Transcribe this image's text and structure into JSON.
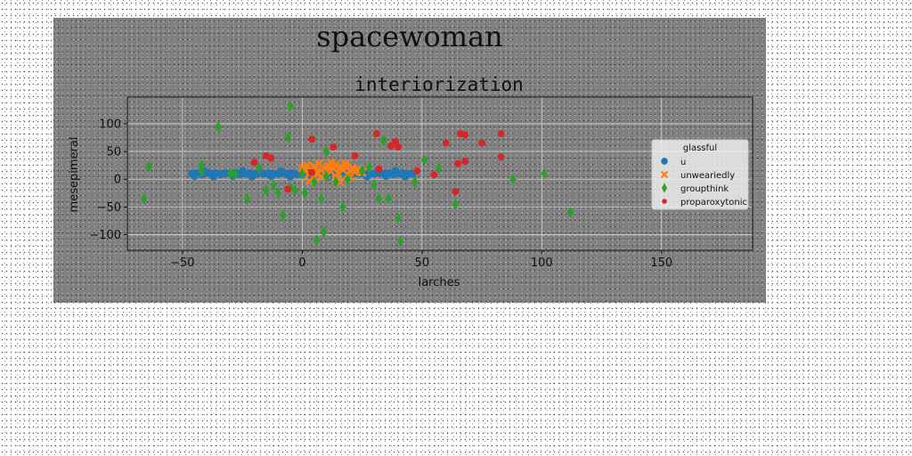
{
  "figure": {
    "suptitle": "spacewoman"
  },
  "chart_data": {
    "type": "scatter",
    "title": "interiorization",
    "xlabel": "larches",
    "ylabel": "mesepimeral",
    "xlim": [
      -73,
      188
    ],
    "ylim": [
      -128,
      148
    ],
    "xticks": [
      -50,
      0,
      50,
      100,
      150
    ],
    "yticks": [
      -100,
      -50,
      0,
      50,
      100
    ],
    "xtick_labels": [
      "−50",
      "0",
      "50",
      "100",
      "150"
    ],
    "ytick_labels": [
      "−100",
      "−50",
      "0",
      "50",
      "100"
    ],
    "grid": true,
    "legend": {
      "title": "glassful",
      "placement": "right"
    },
    "series": [
      {
        "name": "u",
        "marker": "circle",
        "color": "#1f77b4",
        "points": [
          [
            -46,
            10
          ],
          [
            -44,
            11
          ],
          [
            -42,
            9
          ],
          [
            -40,
            12
          ],
          [
            -38,
            10
          ],
          [
            -36,
            11
          ],
          [
            -34,
            9
          ],
          [
            -32,
            11
          ],
          [
            -30,
            10
          ],
          [
            -28,
            12
          ],
          [
            -26,
            9
          ],
          [
            -24,
            10
          ],
          [
            -22,
            11
          ],
          [
            -20,
            9
          ],
          [
            -18,
            12
          ],
          [
            -16,
            10
          ],
          [
            -14,
            11
          ],
          [
            -12,
            9
          ],
          [
            -10,
            10
          ],
          [
            -8,
            12
          ],
          [
            -6,
            10
          ],
          [
            -4,
            11
          ],
          [
            -2,
            9
          ],
          [
            0,
            10
          ],
          [
            2,
            12
          ],
          [
            4,
            10
          ],
          [
            6,
            11
          ],
          [
            8,
            9
          ],
          [
            10,
            10
          ],
          [
            12,
            12
          ],
          [
            14,
            10
          ],
          [
            16,
            11
          ],
          [
            18,
            9
          ],
          [
            20,
            10
          ],
          [
            22,
            12
          ],
          [
            24,
            10
          ],
          [
            26,
            11
          ],
          [
            28,
            9
          ],
          [
            30,
            10
          ],
          [
            32,
            12
          ],
          [
            34,
            10
          ],
          [
            36,
            11
          ],
          [
            38,
            9
          ],
          [
            40,
            10
          ],
          [
            42,
            11
          ],
          [
            44,
            9
          ],
          [
            46,
            10
          ],
          [
            -45,
            6
          ],
          [
            -37,
            5
          ],
          [
            -29,
            6
          ],
          [
            -21,
            5
          ],
          [
            -13,
            6
          ],
          [
            -5,
            5
          ],
          [
            3,
            6
          ],
          [
            11,
            5
          ],
          [
            19,
            6
          ],
          [
            27,
            5
          ],
          [
            35,
            6
          ],
          [
            43,
            5
          ],
          [
            -41,
            14
          ],
          [
            -25,
            15
          ],
          [
            -9,
            14
          ],
          [
            7,
            15
          ],
          [
            23,
            14
          ],
          [
            39,
            15
          ]
        ]
      },
      {
        "name": "unweariedly",
        "marker": "x",
        "color": "#ff7f0e",
        "points": [
          [
            0,
            20
          ],
          [
            1,
            15
          ],
          [
            2,
            25
          ],
          [
            3,
            10
          ],
          [
            4,
            18
          ],
          [
            5,
            22
          ],
          [
            6,
            12
          ],
          [
            7,
            28
          ],
          [
            8,
            16
          ],
          [
            9,
            20
          ],
          [
            10,
            8
          ],
          [
            11,
            24
          ],
          [
            12,
            14
          ],
          [
            13,
            19
          ],
          [
            14,
            26
          ],
          [
            15,
            11
          ],
          [
            16,
            21
          ],
          [
            17,
            17
          ],
          [
            18,
            23
          ],
          [
            19,
            9
          ],
          [
            20,
            15
          ],
          [
            21,
            20
          ],
          [
            22,
            13
          ],
          [
            23,
            18
          ],
          [
            24,
            16
          ],
          [
            25,
            12
          ],
          [
            14,
            0
          ],
          [
            16,
            -5
          ],
          [
            8,
            5
          ],
          [
            5,
            2
          ],
          [
            20,
            5
          ],
          [
            18,
            28
          ],
          [
            12,
            30
          ],
          [
            3,
            -3
          ]
        ]
      },
      {
        "name": "groupthink",
        "marker": "thin_diamond",
        "color": "#2ca02c",
        "points": [
          [
            -66,
            -35
          ],
          [
            -64,
            22
          ],
          [
            -42,
            25
          ],
          [
            -42,
            15
          ],
          [
            -35,
            94
          ],
          [
            -30,
            10
          ],
          [
            -28,
            10
          ],
          [
            -23,
            -35
          ],
          [
            -18,
            20
          ],
          [
            -15,
            -20
          ],
          [
            -12,
            -10
          ],
          [
            -10,
            -25
          ],
          [
            -8,
            -65
          ],
          [
            -6,
            75
          ],
          [
            -5,
            -15
          ],
          [
            -3,
            -20
          ],
          [
            -5,
            132
          ],
          [
            0,
            10
          ],
          [
            1,
            -25
          ],
          [
            5,
            -5
          ],
          [
            6,
            -110
          ],
          [
            8,
            -35
          ],
          [
            9,
            -95
          ],
          [
            10,
            50
          ],
          [
            10,
            5
          ],
          [
            14,
            -5
          ],
          [
            17,
            -50
          ],
          [
            19,
            0
          ],
          [
            25,
            15
          ],
          [
            28,
            22
          ],
          [
            30,
            -10
          ],
          [
            32,
            -35
          ],
          [
            34,
            70
          ],
          [
            36,
            -35
          ],
          [
            40,
            -70
          ],
          [
            41,
            -112
          ],
          [
            47,
            -5
          ],
          [
            51,
            35
          ],
          [
            57,
            20
          ],
          [
            64,
            -45
          ],
          [
            88,
            0
          ],
          [
            101,
            10
          ],
          [
            112,
            -60
          ]
        ]
      },
      {
        "name": "proparoxytonic",
        "marker": "point",
        "color": "#d62728",
        "points": [
          [
            -20,
            30
          ],
          [
            -15,
            42
          ],
          [
            -13,
            38
          ],
          [
            -6,
            -18
          ],
          [
            4,
            72
          ],
          [
            4,
            12
          ],
          [
            13,
            58
          ],
          [
            22,
            42
          ],
          [
            31,
            82
          ],
          [
            32,
            18
          ],
          [
            37,
            60
          ],
          [
            39,
            68
          ],
          [
            40,
            58
          ],
          [
            48,
            15
          ],
          [
            55,
            8
          ],
          [
            60,
            65
          ],
          [
            64,
            -22
          ],
          [
            65,
            28
          ],
          [
            66,
            82
          ],
          [
            68,
            80
          ],
          [
            68,
            32
          ],
          [
            75,
            65
          ],
          [
            83,
            40
          ],
          [
            83,
            82
          ]
        ]
      }
    ]
  }
}
